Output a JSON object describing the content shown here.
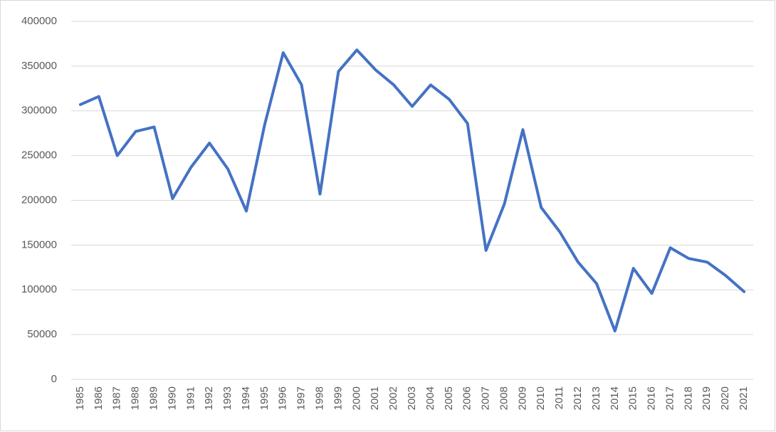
{
  "chart_data": {
    "type": "line",
    "categories": [
      "1985",
      "1986",
      "1987",
      "1988",
      "1989",
      "1990",
      "1991",
      "1992",
      "1993",
      "1994",
      "1995",
      "1996",
      "1997",
      "1998",
      "1999",
      "2000",
      "2001",
      "2002",
      "2003",
      "2004",
      "2005",
      "2006",
      "2007",
      "2008",
      "2009",
      "2010",
      "2011",
      "2012",
      "2013",
      "2014",
      "2015",
      "2016",
      "2017",
      "2018",
      "2019",
      "2020",
      "2021"
    ],
    "values": [
      307000,
      316000,
      250000,
      277000,
      282000,
      202000,
      237000,
      264000,
      235000,
      188000,
      285000,
      365000,
      329000,
      207000,
      344000,
      368000,
      346000,
      329000,
      305000,
      329000,
      313000,
      286000,
      144000,
      196000,
      279000,
      192000,
      165000,
      131000,
      107000,
      54000,
      124000,
      96000,
      147000,
      135000,
      131000,
      116000,
      98000
    ],
    "color": "#4472c4",
    "ylim": [
      0,
      400000
    ],
    "yticks": [
      0,
      50000,
      100000,
      150000,
      200000,
      250000,
      300000,
      350000,
      400000
    ],
    "grid": true
  }
}
